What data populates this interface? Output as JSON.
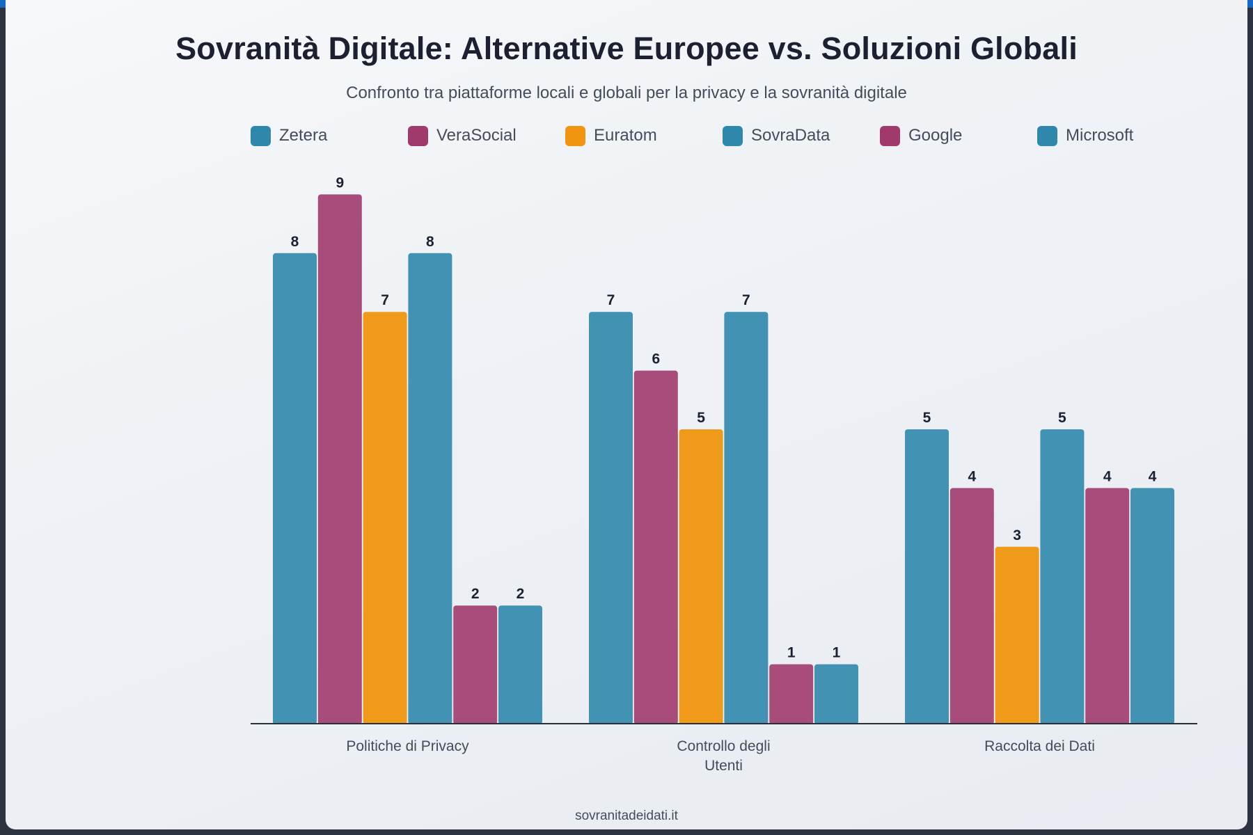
{
  "title": "Sovranità Digitale: Alternative Europee vs. Soluzioni Globali",
  "subtitle": "Confronto tra piattaforme locali e globali per la privacy e la sovranità digitale",
  "footer": "sovranitadeidati.it",
  "colors": {
    "top_bar": "#1768c4",
    "axis": "#2a2e38",
    "value_label": "#1c2030"
  },
  "chart_data": {
    "type": "bar",
    "categories": [
      [
        "Politiche di Privacy"
      ],
      [
        "Controllo degli",
        "Utenti"
      ],
      [
        "Raccolta dei Dati"
      ]
    ],
    "series": [
      {
        "name": "Zetera",
        "color": "#4292b3",
        "legend_color": "#2f87ab",
        "values": [
          8,
          7,
          5
        ]
      },
      {
        "name": "VeraSocial",
        "color": "#a84d7b",
        "legend_color": "#a03a6d",
        "values": [
          9,
          6,
          4
        ]
      },
      {
        "name": "Euratom",
        "color": "#f09a1a",
        "legend_color": "#f19410",
        "values": [
          7,
          5,
          3
        ]
      },
      {
        "name": "SovraData",
        "color": "#4292b3",
        "legend_color": "#2f87ab",
        "values": [
          8,
          7,
          5
        ]
      },
      {
        "name": "Google",
        "color": "#a84d7b",
        "legend_color": "#a03a6d",
        "values": [
          2,
          1,
          4
        ]
      },
      {
        "name": "Microsoft",
        "color": "#4292b3",
        "legend_color": "#2f87ab",
        "values": [
          2,
          1,
          4
        ]
      }
    ],
    "ylim": [
      0,
      10
    ],
    "xlabel": "",
    "ylabel": "",
    "grid": false,
    "legend_position": "top",
    "data_labels": true
  }
}
